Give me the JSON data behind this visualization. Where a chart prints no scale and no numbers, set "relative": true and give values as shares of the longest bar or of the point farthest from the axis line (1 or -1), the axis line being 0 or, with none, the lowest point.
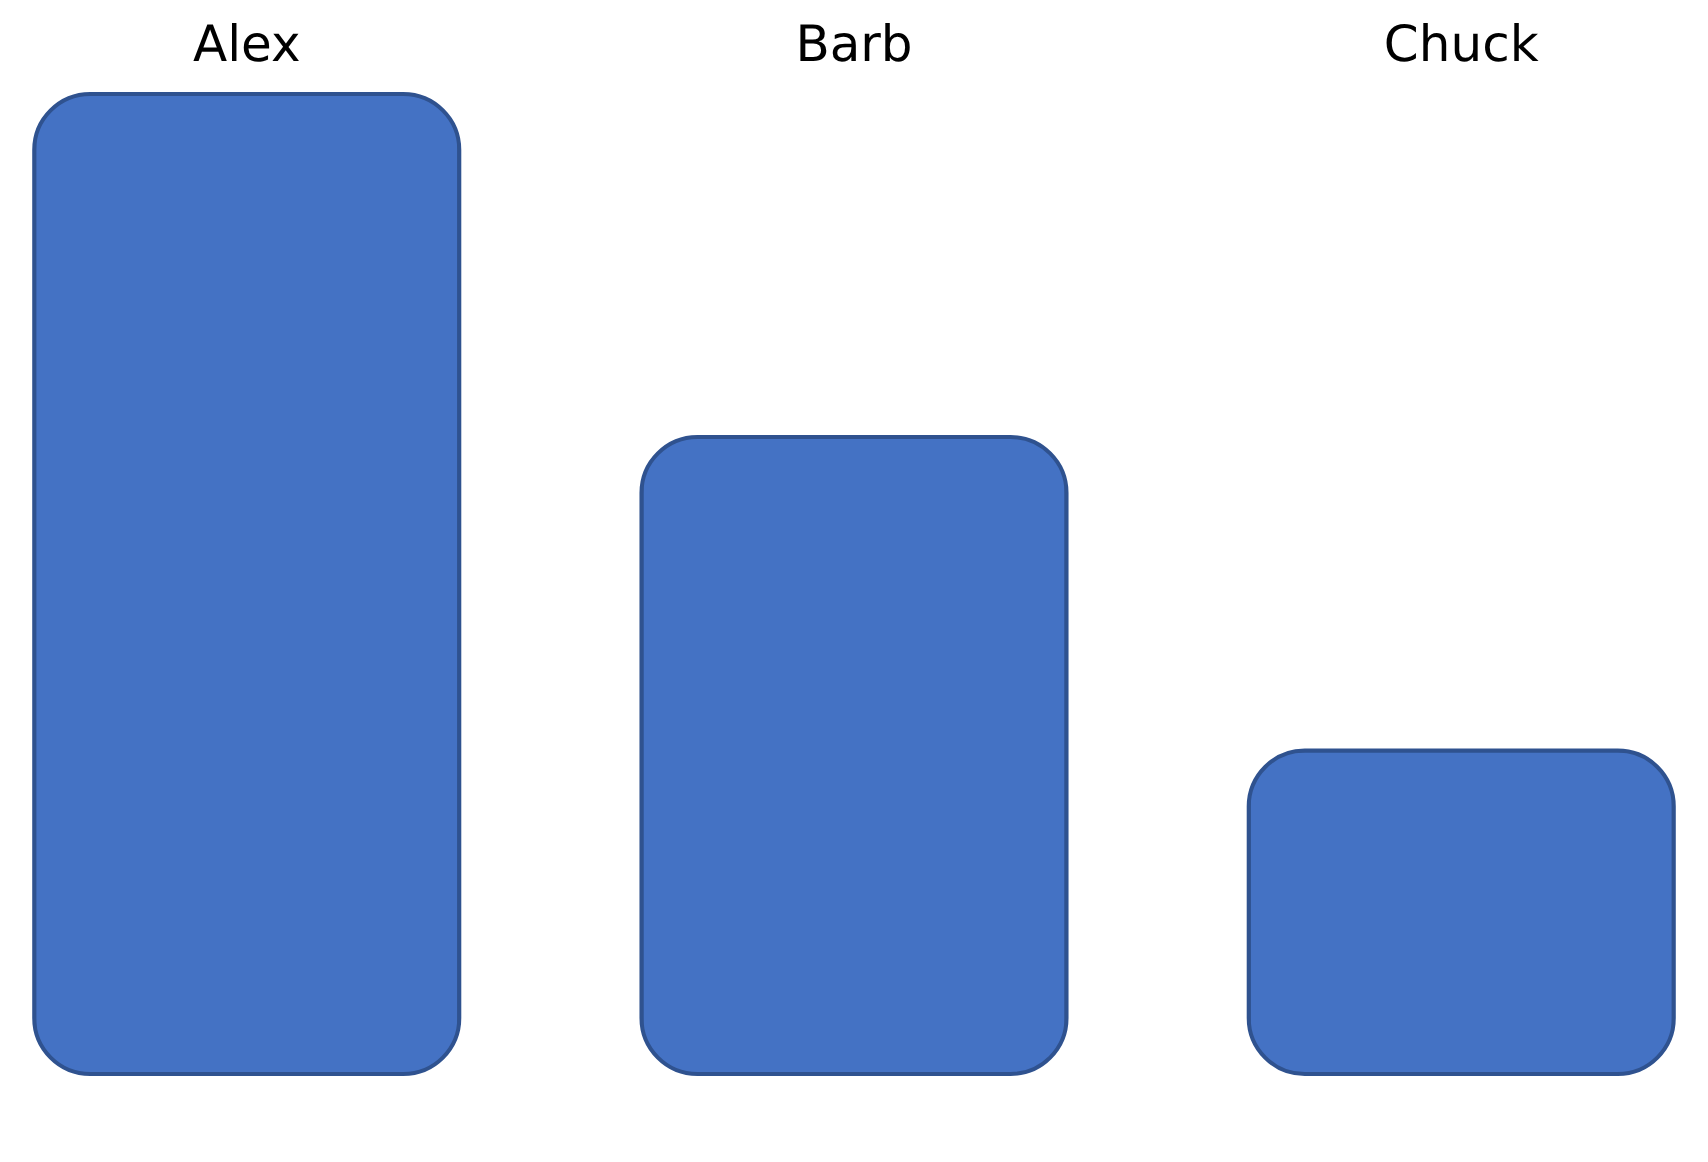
{
  "chart_data": {
    "type": "bar",
    "relative": true,
    "categories": [
      "Alex",
      "Barb",
      "Chuck"
    ],
    "values": [
      1,
      0.65,
      0.33
    ],
    "color": "#4472c4"
  }
}
